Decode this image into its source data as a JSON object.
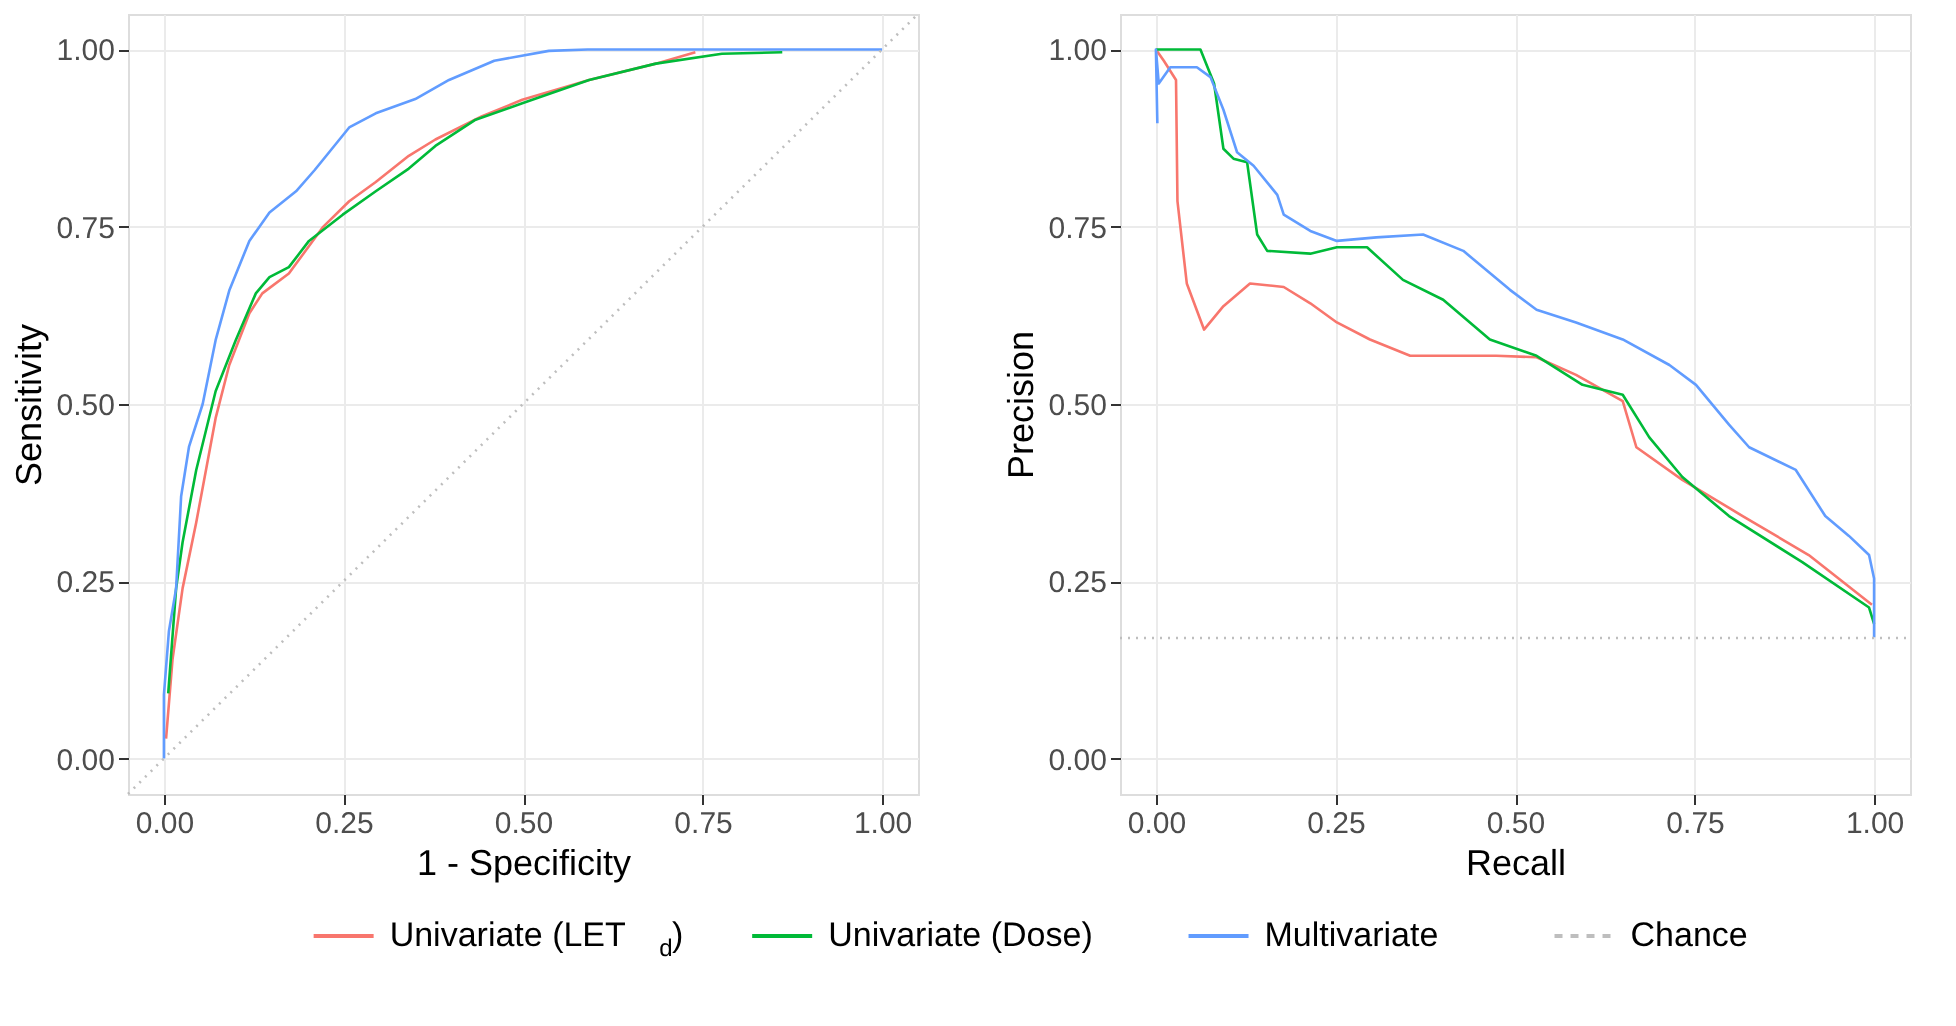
{
  "chart_data": [
    {
      "type": "line",
      "xlabel": "1 - Specificity",
      "ylabel": "Sensitivity",
      "xlim": [
        -0.05,
        1.05
      ],
      "ylim": [
        -0.05,
        1.05
      ],
      "xticks": [
        {
          "value": 0,
          "label": "0.00"
        },
        {
          "value": 0.25,
          "label": "0.25"
        },
        {
          "value": 0.5,
          "label": "0.50"
        },
        {
          "value": 0.75,
          "label": "0.75"
        },
        {
          "value": 1,
          "label": "1.00"
        }
      ],
      "yticks": [
        {
          "value": 0,
          "label": "0.00"
        },
        {
          "value": 0.25,
          "label": "0.25"
        },
        {
          "value": 0.5,
          "label": "0.50"
        },
        {
          "value": 0.75,
          "label": "0.75"
        },
        {
          "value": 1,
          "label": "1.00"
        }
      ],
      "grid": true,
      "legend": "bottom",
      "line_style": "solid",
      "series": [
        {
          "name": "Univariate (LET$_{d}$)",
          "color": "#f8766d",
          "x": [
            0.003,
            0.012,
            0.026,
            0.045,
            0.072,
            0.091,
            0.119,
            0.137,
            0.174,
            0.221,
            0.258,
            0.295,
            0.341,
            0.378,
            0.443,
            0.499,
            0.592,
            0.685,
            0.74
          ],
          "values": [
            0.028,
            0.14,
            0.24,
            0.333,
            0.48,
            0.555,
            0.628,
            0.656,
            0.684,
            0.749,
            0.786,
            0.813,
            0.85,
            0.873,
            0.906,
            0.929,
            0.957,
            0.98,
            0.996
          ]
        },
        {
          "name": "Univariate (Dose)",
          "color": "#00ba38",
          "x": [
            0.006,
            0.017,
            0.026,
            0.045,
            0.072,
            0.1,
            0.128,
            0.147,
            0.174,
            0.202,
            0.249,
            0.295,
            0.341,
            0.378,
            0.434,
            0.499,
            0.592,
            0.685,
            0.777,
            0.861
          ],
          "values": [
            0.092,
            0.24,
            0.305,
            0.407,
            0.518,
            0.59,
            0.656,
            0.679,
            0.693,
            0.73,
            0.767,
            0.8,
            0.832,
            0.864,
            0.901,
            0.924,
            0.957,
            0.98,
            0.994,
            0.996
          ]
        },
        {
          "name": "Multivariate",
          "color": "#619cff",
          "x": [
            0,
            0,
            0.007,
            0.017,
            0.024,
            0.035,
            0.054,
            0.072,
            0.091,
            0.119,
            0.147,
            0.184,
            0.21,
            0.258,
            0.295,
            0.35,
            0.397,
            0.46,
            0.536,
            0.59,
            1
          ],
          "values": [
            0,
            0.09,
            0.18,
            0.24,
            0.37,
            0.44,
            0.5,
            0.59,
            0.66,
            0.73,
            0.77,
            0.8,
            0.83,
            0.89,
            0.91,
            0.93,
            0.957,
            0.984,
            0.998,
            1,
            1
          ]
        },
        {
          "name": "Chance",
          "color": "#bebebe",
          "line_style": "dotted",
          "x": [
            -0.05,
            1.05
          ],
          "values": [
            -0.05,
            1.05
          ]
        }
      ]
    },
    {
      "type": "line",
      "xlabel": "Recall",
      "ylabel": "Precision",
      "xlim": [
        -0.05,
        1.05
      ],
      "ylim": [
        -0.05,
        1.05
      ],
      "xticks": [
        {
          "value": 0,
          "label": "0.00"
        },
        {
          "value": 0.25,
          "label": "0.25"
        },
        {
          "value": 0.5,
          "label": "0.50"
        },
        {
          "value": 0.75,
          "label": "0.75"
        },
        {
          "value": 1,
          "label": "1.00"
        }
      ],
      "yticks": [
        {
          "value": 0,
          "label": "0.00"
        },
        {
          "value": 0.25,
          "label": "0.25"
        },
        {
          "value": 0.5,
          "label": "0.50"
        },
        {
          "value": 0.75,
          "label": "0.75"
        },
        {
          "value": 1,
          "label": "1.00"
        }
      ],
      "grid": true,
      "legend": "bottom",
      "line_style": "solid",
      "series": [
        {
          "name": "Univariate (LET$_{d}$)",
          "color": "#f8766d",
          "x": [
            0,
            0.011,
            0.028,
            0.03,
            0.043,
            0.067,
            0.094,
            0.131,
            0.178,
            0.215,
            0.252,
            0.298,
            0.354,
            0.474,
            0.53,
            0.585,
            0.65,
            0.669,
            0.733,
            0.817,
            0.909,
            0.997
          ],
          "values": [
            1,
            0.984,
            0.957,
            0.786,
            0.67,
            0.605,
            0.638,
            0.67,
            0.665,
            0.642,
            0.615,
            0.591,
            0.568,
            0.568,
            0.566,
            0.541,
            0.504,
            0.439,
            0.393,
            0.342,
            0.287,
            0.217
          ]
        },
        {
          "name": "Univariate (Dose)",
          "color": "#00ba38",
          "x": [
            0,
            0.062,
            0.081,
            0.094,
            0.108,
            0.127,
            0.141,
            0.155,
            0.215,
            0.252,
            0.294,
            0.344,
            0.4,
            0.465,
            0.53,
            0.594,
            0.65,
            0.687,
            0.733,
            0.798,
            0.9,
            0.993,
            1
          ],
          "values": [
            1,
            1,
            0.952,
            0.86,
            0.846,
            0.841,
            0.739,
            0.716,
            0.712,
            0.721,
            0.721,
            0.675,
            0.647,
            0.591,
            0.568,
            0.527,
            0.513,
            0.453,
            0.397,
            0.342,
            0.277,
            0.213,
            0.19
          ]
        },
        {
          "name": "Multivariate",
          "color": "#619cff",
          "x": [
            0.002,
            0,
            0.004,
            0.02,
            0.057,
            0.076,
            0.094,
            0.113,
            0.136,
            0.169,
            0.178,
            0.215,
            0.252,
            0.307,
            0.372,
            0.428,
            0.493,
            0.53,
            0.585,
            0.65,
            0.715,
            0.752,
            0.798,
            0.826,
            0.891,
            0.932,
            0.965,
            0.993,
            1,
            1
          ],
          "values": [
            0.896,
            1,
            0.952,
            0.975,
            0.975,
            0.961,
            0.915,
            0.855,
            0.836,
            0.795,
            0.767,
            0.744,
            0.73,
            0.735,
            0.739,
            0.716,
            0.661,
            0.633,
            0.615,
            0.591,
            0.555,
            0.527,
            0.471,
            0.439,
            0.407,
            0.342,
            0.314,
            0.287,
            0.254,
            0.171
          ]
        },
        {
          "name": "Chance",
          "color": "#bebebe",
          "line_style": "dotted",
          "x": [
            -0.05,
            1.05
          ],
          "values": [
            0.17,
            0.17
          ]
        }
      ]
    }
  ]
}
